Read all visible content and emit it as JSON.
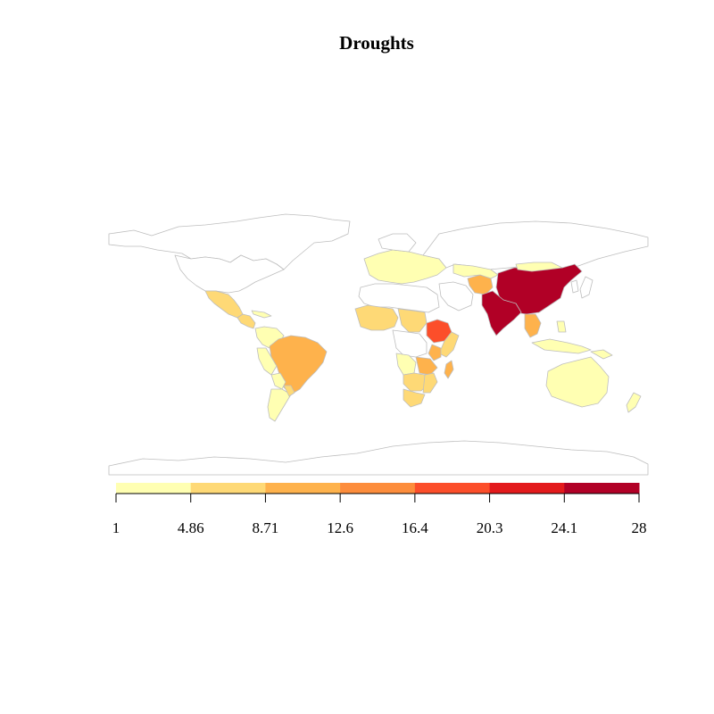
{
  "title": "Droughts",
  "legend": {
    "breaks": [
      "1",
      "4.86",
      "8.71",
      "12.6",
      "16.4",
      "20.3",
      "24.1",
      "28"
    ],
    "colors": [
      "#FFFFB2",
      "#FED976",
      "#FEB24C",
      "#FD8D3C",
      "#FC4E2A",
      "#E31A1C",
      "#B10026"
    ]
  },
  "colors": {
    "no_data": "#ffffff",
    "border": "#bebebe"
  },
  "choropleth_classes": [
    {
      "region": "China",
      "class": 7
    },
    {
      "region": "India",
      "class": 7
    },
    {
      "region": "Ethiopia",
      "class": 5
    },
    {
      "region": "Brazil",
      "class": 3
    },
    {
      "region": "Kenya",
      "class": 3
    },
    {
      "region": "Afghanistan",
      "class": 3
    },
    {
      "region": "Mexico",
      "class": 2
    },
    {
      "region": "Central America",
      "class": 2
    },
    {
      "region": "Thailand",
      "class": 3
    },
    {
      "region": "Mozambique",
      "class": 2
    },
    {
      "region": "Zimbabwe",
      "class": 2
    },
    {
      "region": "Madagascar",
      "class": 2
    },
    {
      "region": "Australia",
      "class": 1
    },
    {
      "region": "Argentina",
      "class": 1
    },
    {
      "region": "Bolivia",
      "class": 1
    },
    {
      "region": "Peru",
      "class": 1
    },
    {
      "region": "Niger",
      "class": 1
    },
    {
      "region": "Sudan",
      "class": 1
    },
    {
      "region": "Mongolia",
      "class": 1
    },
    {
      "region": "Somalia",
      "class": 2
    },
    {
      "region": "New Zealand",
      "class": 1
    }
  ]
}
